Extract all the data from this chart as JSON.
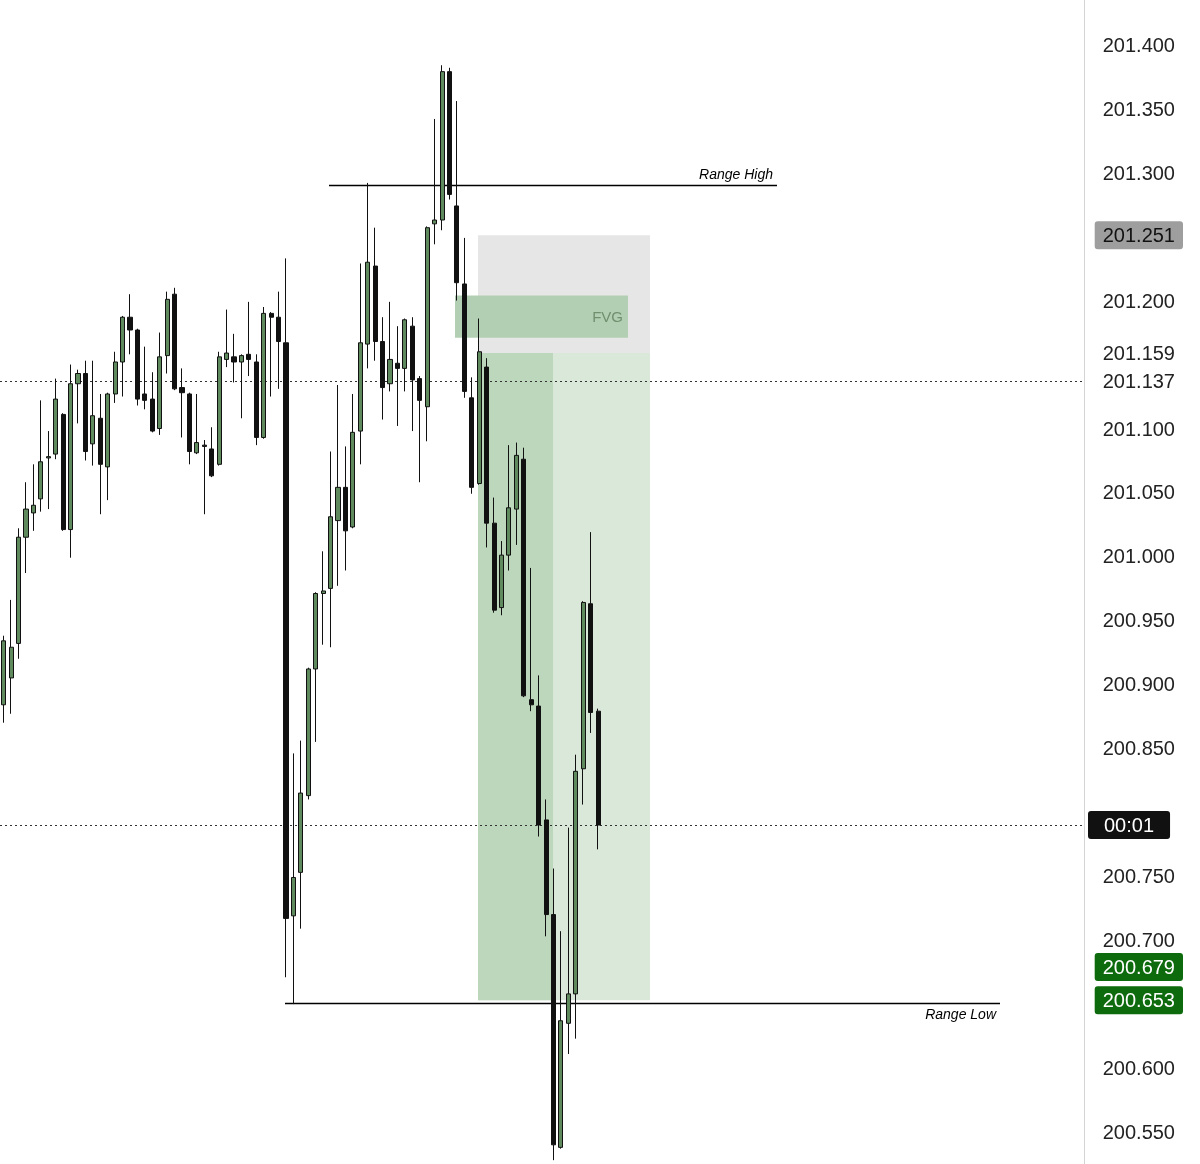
{
  "chart_data": {
    "type": "candlestick",
    "categories": [
      null,
      null,
      null,
      null,
      null,
      null,
      null,
      null,
      null,
      null,
      null,
      null,
      null,
      null,
      null,
      null,
      null,
      null,
      null,
      null,
      null,
      null,
      null,
      null,
      null,
      null,
      null,
      null,
      null,
      null,
      null,
      null,
      null,
      null,
      null,
      null,
      null,
      null,
      null,
      null,
      null,
      null,
      null,
      null,
      null,
      null,
      null,
      null,
      null,
      null,
      null,
      null,
      null,
      null,
      null,
      null,
      null,
      null,
      null,
      null,
      null,
      null,
      null,
      null,
      null,
      null,
      null,
      null,
      null,
      null,
      null,
      null,
      null,
      null,
      null,
      null,
      null,
      null,
      null,
      null,
      null,
      null,
      null,
      null,
      null,
      null,
      null,
      null,
      null,
      null,
      null,
      null,
      null,
      null,
      null,
      null,
      null,
      null,
      null,
      null,
      null,
      null,
      null,
      null,
      null,
      null,
      null,
      null,
      null,
      null,
      null,
      null,
      null,
      null,
      null,
      null,
      null,
      null,
      null,
      null,
      null,
      null,
      null,
      null,
      null,
      null,
      null,
      null,
      null,
      null,
      null,
      null,
      null,
      null,
      null,
      null,
      null,
      null,
      null,
      null,
      null,
      null,
      null,
      null,
      null,
      null
    ],
    "ohlc": [
      [
        200.884,
        200.938,
        200.87,
        200.934
      ],
      [
        200.905,
        200.966,
        200.877,
        200.929
      ],
      [
        200.932,
        201.022,
        200.92,
        201.015
      ],
      [
        201.015,
        201.058,
        200.987,
        201.037
      ],
      [
        201.034,
        201.072,
        201.02,
        201.04
      ],
      [
        201.045,
        201.122,
        201.035,
        201.074
      ],
      [
        201.077,
        201.098,
        201.037,
        201.078
      ],
      [
        201.08,
        201.139,
        201.076,
        201.123
      ],
      [
        201.111,
        201.112,
        201.02,
        201.021
      ],
      [
        201.021,
        201.15,
        200.999,
        201.135
      ],
      [
        201.135,
        201.146,
        201.104,
        201.143
      ],
      [
        201.143,
        201.153,
        201.075,
        201.082
      ],
      [
        201.088,
        201.153,
        201.071,
        201.11
      ],
      [
        201.108,
        201.127,
        201.033,
        201.072
      ],
      [
        201.07,
        201.128,
        201.044,
        201.127
      ],
      [
        201.127,
        201.16,
        201.12,
        201.152
      ],
      [
        201.152,
        201.188,
        201.125,
        201.187
      ],
      [
        201.187,
        201.205,
        201.158,
        201.177
      ],
      [
        201.177,
        201.178,
        201.118,
        201.123
      ],
      [
        201.127,
        201.164,
        201.115,
        201.122
      ],
      [
        201.123,
        201.144,
        201.097,
        201.098
      ],
      [
        201.1,
        201.175,
        201.095,
        201.156
      ],
      [
        201.157,
        201.207,
        201.143,
        201.201
      ],
      [
        201.205,
        201.21,
        201.13,
        201.131
      ],
      [
        201.132,
        201.147,
        201.093,
        201.128
      ],
      [
        201.127,
        201.128,
        201.072,
        201.082
      ],
      [
        201.081,
        201.127,
        201.08,
        201.089
      ],
      [
        201.087,
        201.091,
        201.033,
        201.086
      ],
      [
        201.084,
        201.101,
        201.062,
        201.063
      ],
      [
        201.072,
        201.16,
        201.071,
        201.156
      ],
      [
        201.154,
        201.193,
        201.148,
        201.159
      ],
      [
        201.156,
        201.174,
        201.136,
        201.152
      ],
      [
        201.152,
        201.158,
        201.108,
        201.157
      ],
      [
        201.158,
        201.199,
        201.141,
        201.154
      ],
      [
        201.152,
        201.158,
        201.087,
        201.093
      ],
      [
        201.093,
        201.195,
        201.092,
        201.19
      ],
      [
        201.19,
        201.191,
        201.125,
        201.187
      ],
      [
        201.187,
        201.207,
        201.131,
        201.168
      ],
      [
        201.167,
        201.233,
        200.671,
        200.717
      ],
      [
        200.719,
        200.846,
        200.65,
        200.749
      ],
      [
        200.753,
        200.856,
        200.709,
        200.815
      ],
      [
        200.813,
        200.913,
        200.81,
        200.912
      ],
      [
        200.912,
        200.972,
        200.855,
        200.971
      ],
      [
        200.971,
        201.004,
        200.931,
        200.973
      ],
      [
        200.975,
        201.082,
        200.929,
        201.031
      ],
      [
        201.028,
        201.134,
        200.977,
        201.054
      ],
      [
        201.054,
        201.086,
        200.989,
        201.02
      ],
      [
        201.023,
        201.127,
        201.022,
        201.097
      ],
      [
        201.098,
        201.229,
        201.072,
        201.167
      ],
      [
        201.166,
        201.292,
        201.147,
        201.23
      ],
      [
        201.227,
        201.257,
        201.153,
        201.168
      ],
      [
        201.168,
        201.187,
        201.107,
        201.132
      ],
      [
        201.135,
        201.199,
        201.129,
        201.154
      ],
      [
        201.151,
        201.18,
        201.102,
        201.147
      ],
      [
        201.147,
        201.186,
        201.129,
        201.185
      ],
      [
        201.18,
        201.187,
        201.098,
        201.138
      ],
      [
        201.139,
        201.141,
        201.058,
        201.122
      ],
      [
        201.117,
        201.258,
        201.09,
        201.257
      ],
      [
        201.26,
        201.342,
        201.244,
        201.263
      ],
      [
        201.263,
        201.384,
        201.255,
        201.379
      ],
      [
        201.379,
        201.382,
        201.279,
        201.283
      ],
      [
        201.274,
        201.356,
        201.2,
        201.214
      ],
      [
        201.213,
        201.249,
        201.124,
        201.129
      ],
      [
        201.124,
        201.14,
        201.049,
        201.054
      ],
      [
        201.057,
        201.186,
        201.056,
        201.16
      ],
      [
        201.148,
        201.155,
        201.007,
        201.026
      ],
      [
        201.026,
        201.046,
        200.956,
        200.958
      ],
      [
        200.96,
        201.012,
        200.954,
        201.001
      ],
      [
        201.001,
        201.087,
        200.989,
        201.038
      ],
      [
        201.037,
        201.089,
        201.009,
        201.079
      ],
      [
        201.076,
        201.085,
        200.89,
        200.891
      ],
      [
        200.888,
        200.991,
        200.879,
        200.884
      ],
      [
        200.883,
        200.907,
        200.781,
        200.79
      ],
      [
        200.794,
        200.81,
        200.703,
        200.72
      ],
      [
        200.72,
        200.756,
        200.528,
        200.54
      ],
      [
        200.538,
        200.707,
        200.537,
        200.637
      ],
      [
        200.635,
        200.788,
        200.611,
        200.658
      ],
      [
        200.658,
        200.845,
        200.623,
        200.832
      ],
      [
        200.834,
        200.965,
        200.806,
        200.964
      ],
      [
        200.963,
        201.019,
        200.862,
        200.878
      ],
      [
        200.879,
        200.881,
        200.771,
        200.79
      ],
      null,
      null,
      null,
      null,
      null,
      null,
      null,
      null,
      null,
      null,
      null,
      null,
      null,
      null,
      null,
      null,
      null,
      null,
      null,
      null,
      null,
      null,
      null,
      null,
      null,
      null,
      null,
      null,
      null,
      null,
      null,
      null,
      null,
      null,
      null,
      null,
      null,
      null,
      null,
      null,
      null,
      null,
      null,
      null,
      null,
      null,
      null,
      null,
      null,
      null,
      null,
      null,
      null,
      null,
      null,
      null,
      null,
      null,
      null,
      null,
      null,
      null,
      null,
      null,
      null
    ],
    "ylim": [
      200.525,
      201.435
    ],
    "yticks": [
      {
        "value": 200.55,
        "label": "200.550"
      },
      {
        "value": 200.6,
        "label": "200.600"
      },
      200.653,
      200.679,
      {
        "value": 200.7,
        "label": "200.700"
      },
      {
        "value": 200.75,
        "label": "200.750"
      },
      {
        "value": 200.85,
        "label": "200.850"
      },
      {
        "value": 200.9,
        "label": "200.900"
      },
      {
        "value": 200.95,
        "label": "200.950"
      },
      {
        "value": 201,
        "label": "201.000"
      },
      {
        "value": 201.05,
        "label": "201.050"
      },
      {
        "value": 201.1,
        "label": "201.100"
      },
      201.137,
      201.159,
      {
        "value": 201.2,
        "label": "201.200"
      },
      201.251,
      {
        "value": 201.3,
        "label": "201.300"
      },
      {
        "value": 201.35,
        "label": "201.350"
      },
      {
        "value": 201.4,
        "label": "201.400"
      }
    ],
    "tick_labels": "y",
    "grid": false,
    "bands": [
      {
        "axis": "y",
        "from": 201.159,
        "to": 201.251,
        "color": "#e6e6e6"
      },
      {
        "axis": "y",
        "from": 200.653,
        "to": 201.159,
        "color": "#d9e8d9"
      },
      {
        "axis": "y",
        "from": 200.653,
        "to": 201.159,
        "color": "#bcd7bc"
      },
      {
        "axis": "y",
        "from": 201.171,
        "to": 201.204,
        "label": "FVG",
        "color": "#b3cfb3"
      }
    ],
    "ref_lines": [
      {
        "axis": "y",
        "value": 201.29,
        "label": "Range High",
        "color": "#000000",
        "line_style": "solid"
      },
      {
        "axis": "y",
        "value": 200.651,
        "label": "Range Low",
        "color": "#000000",
        "line_style": "solid"
      },
      {
        "axis": "y",
        "value": 201.137,
        "color": "#333333",
        "line_style": "dotted"
      },
      {
        "axis": "y",
        "value": 200.79,
        "color": "#333333",
        "line_style": "dotted"
      }
    ],
    "annotations": [
      "00:01"
    ]
  }
}
